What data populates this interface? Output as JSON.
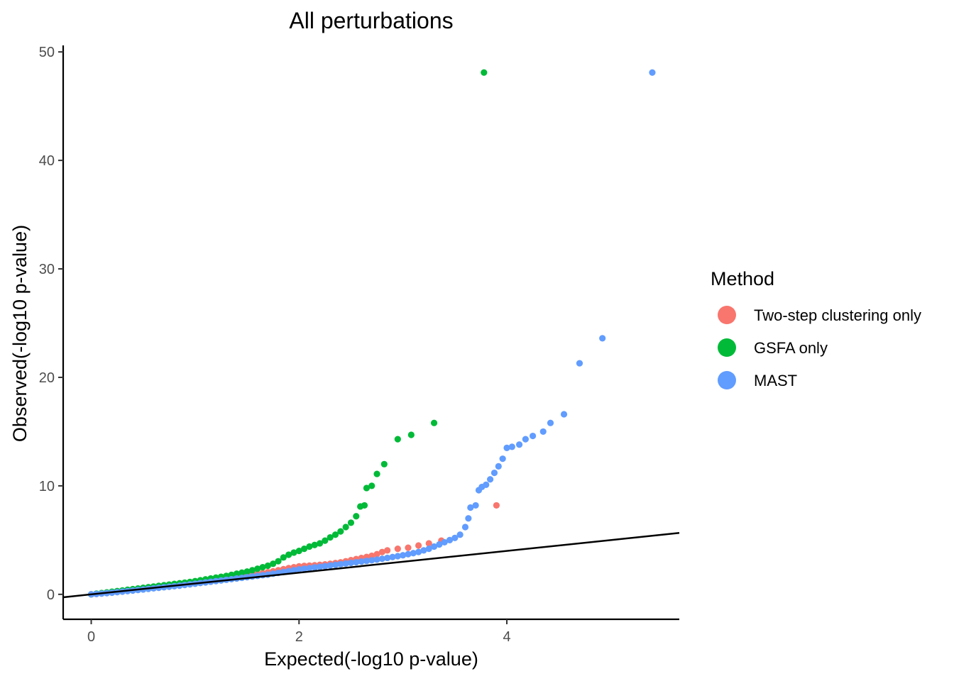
{
  "chart_data": {
    "type": "scatter",
    "title": "All perturbations",
    "xlabel": "Expected(-log10 p-value)",
    "ylabel": "Observed(-log10 p-value)",
    "xlim": [
      -0.27,
      5.66
    ],
    "ylim": [
      -2.3,
      50.6
    ],
    "x_ticks": [
      0,
      2,
      4
    ],
    "y_ticks": [
      0,
      10,
      20,
      30,
      40,
      50
    ],
    "grid": false,
    "reference_line": {
      "slope": 1,
      "intercept": 0,
      "color": "#000000"
    },
    "legend": {
      "title": "Method",
      "position": "right",
      "entries": [
        {
          "label": "Two-step clustering only",
          "color": "#F8766D"
        },
        {
          "label": "GSFA only",
          "color": "#00BA38"
        },
        {
          "label": "MAST",
          "color": "#619CFF"
        }
      ]
    },
    "series": [
      {
        "name": "Two-step clustering only",
        "color": "#F8766D",
        "points": [
          [
            0.0,
            0.0
          ],
          [
            0.05,
            0.04
          ],
          [
            0.1,
            0.09
          ],
          [
            0.15,
            0.14
          ],
          [
            0.2,
            0.19
          ],
          [
            0.25,
            0.24
          ],
          [
            0.3,
            0.29
          ],
          [
            0.35,
            0.34
          ],
          [
            0.4,
            0.39
          ],
          [
            0.45,
            0.44
          ],
          [
            0.5,
            0.5
          ],
          [
            0.55,
            0.56
          ],
          [
            0.6,
            0.62
          ],
          [
            0.65,
            0.68
          ],
          [
            0.7,
            0.74
          ],
          [
            0.75,
            0.8
          ],
          [
            0.8,
            0.86
          ],
          [
            0.85,
            0.92
          ],
          [
            0.9,
            0.98
          ],
          [
            0.95,
            1.04
          ],
          [
            1.0,
            1.1
          ],
          [
            1.05,
            1.16
          ],
          [
            1.1,
            1.22
          ],
          [
            1.15,
            1.28
          ],
          [
            1.2,
            1.34
          ],
          [
            1.25,
            1.4
          ],
          [
            1.3,
            1.46
          ],
          [
            1.35,
            1.52
          ],
          [
            1.4,
            1.58
          ],
          [
            1.45,
            1.64
          ],
          [
            1.5,
            1.72
          ],
          [
            1.55,
            1.8
          ],
          [
            1.6,
            1.88
          ],
          [
            1.65,
            1.96
          ],
          [
            1.7,
            2.04
          ],
          [
            1.75,
            2.12
          ],
          [
            1.8,
            2.22
          ],
          [
            1.85,
            2.32
          ],
          [
            1.9,
            2.42
          ],
          [
            1.95,
            2.5
          ],
          [
            2.0,
            2.58
          ],
          [
            2.05,
            2.62
          ],
          [
            2.1,
            2.65
          ],
          [
            2.15,
            2.68
          ],
          [
            2.2,
            2.72
          ],
          [
            2.25,
            2.76
          ],
          [
            2.3,
            2.82
          ],
          [
            2.35,
            2.88
          ],
          [
            2.4,
            2.95
          ],
          [
            2.45,
            3.05
          ],
          [
            2.5,
            3.15
          ],
          [
            2.55,
            3.25
          ],
          [
            2.6,
            3.35
          ],
          [
            2.65,
            3.45
          ],
          [
            2.7,
            3.55
          ],
          [
            2.75,
            3.7
          ],
          [
            2.8,
            3.9
          ],
          [
            2.85,
            4.05
          ],
          [
            2.95,
            4.2
          ],
          [
            3.05,
            4.3
          ],
          [
            3.15,
            4.5
          ],
          [
            3.25,
            4.7
          ],
          [
            3.37,
            4.95
          ],
          [
            3.9,
            8.2
          ]
        ]
      },
      {
        "name": "GSFA only",
        "color": "#00BA38",
        "points": [
          [
            0.0,
            0.0
          ],
          [
            0.05,
            0.06
          ],
          [
            0.1,
            0.12
          ],
          [
            0.15,
            0.18
          ],
          [
            0.2,
            0.24
          ],
          [
            0.25,
            0.3
          ],
          [
            0.3,
            0.36
          ],
          [
            0.35,
            0.42
          ],
          [
            0.4,
            0.48
          ],
          [
            0.45,
            0.54
          ],
          [
            0.5,
            0.6
          ],
          [
            0.55,
            0.66
          ],
          [
            0.6,
            0.72
          ],
          [
            0.65,
            0.78
          ],
          [
            0.7,
            0.84
          ],
          [
            0.75,
            0.9
          ],
          [
            0.8,
            0.96
          ],
          [
            0.85,
            1.02
          ],
          [
            0.9,
            1.08
          ],
          [
            0.95,
            1.14
          ],
          [
            1.0,
            1.22
          ],
          [
            1.05,
            1.3
          ],
          [
            1.1,
            1.38
          ],
          [
            1.15,
            1.46
          ],
          [
            1.2,
            1.54
          ],
          [
            1.25,
            1.62
          ],
          [
            1.3,
            1.7
          ],
          [
            1.35,
            1.8
          ],
          [
            1.4,
            1.9
          ],
          [
            1.45,
            2.0
          ],
          [
            1.5,
            2.1
          ],
          [
            1.55,
            2.22
          ],
          [
            1.6,
            2.36
          ],
          [
            1.65,
            2.5
          ],
          [
            1.7,
            2.64
          ],
          [
            1.75,
            2.82
          ],
          [
            1.8,
            3.05
          ],
          [
            1.85,
            3.4
          ],
          [
            1.9,
            3.65
          ],
          [
            1.95,
            3.85
          ],
          [
            2.0,
            4.0
          ],
          [
            2.05,
            4.2
          ],
          [
            2.1,
            4.4
          ],
          [
            2.15,
            4.55
          ],
          [
            2.2,
            4.7
          ],
          [
            2.25,
            4.95
          ],
          [
            2.3,
            5.25
          ],
          [
            2.35,
            5.5
          ],
          [
            2.4,
            5.8
          ],
          [
            2.45,
            6.2
          ],
          [
            2.5,
            6.6
          ],
          [
            2.55,
            7.2
          ],
          [
            2.59,
            8.1
          ],
          [
            2.63,
            8.2
          ],
          [
            2.65,
            9.8
          ],
          [
            2.7,
            10.0
          ],
          [
            2.75,
            11.1
          ],
          [
            2.82,
            12.0
          ],
          [
            2.95,
            14.3
          ],
          [
            3.08,
            14.7
          ],
          [
            3.3,
            15.8
          ],
          [
            3.78,
            48.1
          ]
        ]
      },
      {
        "name": "MAST",
        "color": "#619CFF",
        "points": [
          [
            0.0,
            0.0
          ],
          [
            0.05,
            0.03
          ],
          [
            0.1,
            0.07
          ],
          [
            0.15,
            0.11
          ],
          [
            0.2,
            0.15
          ],
          [
            0.25,
            0.2
          ],
          [
            0.3,
            0.25
          ],
          [
            0.35,
            0.3
          ],
          [
            0.4,
            0.35
          ],
          [
            0.45,
            0.4
          ],
          [
            0.5,
            0.45
          ],
          [
            0.55,
            0.5
          ],
          [
            0.6,
            0.55
          ],
          [
            0.65,
            0.6
          ],
          [
            0.7,
            0.65
          ],
          [
            0.75,
            0.7
          ],
          [
            0.8,
            0.75
          ],
          [
            0.85,
            0.8
          ],
          [
            0.9,
            0.86
          ],
          [
            0.95,
            0.92
          ],
          [
            1.0,
            0.98
          ],
          [
            1.05,
            1.04
          ],
          [
            1.1,
            1.1
          ],
          [
            1.15,
            1.16
          ],
          [
            1.2,
            1.22
          ],
          [
            1.25,
            1.28
          ],
          [
            1.3,
            1.34
          ],
          [
            1.35,
            1.4
          ],
          [
            1.4,
            1.46
          ],
          [
            1.45,
            1.52
          ],
          [
            1.5,
            1.58
          ],
          [
            1.55,
            1.64
          ],
          [
            1.6,
            1.7
          ],
          [
            1.65,
            1.76
          ],
          [
            1.7,
            1.82
          ],
          [
            1.75,
            1.9
          ],
          [
            1.8,
            1.98
          ],
          [
            1.85,
            2.06
          ],
          [
            1.9,
            2.14
          ],
          [
            1.95,
            2.22
          ],
          [
            2.0,
            2.3
          ],
          [
            2.05,
            2.36
          ],
          [
            2.1,
            2.42
          ],
          [
            2.15,
            2.48
          ],
          [
            2.2,
            2.54
          ],
          [
            2.25,
            2.6
          ],
          [
            2.3,
            2.66
          ],
          [
            2.35,
            2.72
          ],
          [
            2.4,
            2.78
          ],
          [
            2.45,
            2.84
          ],
          [
            2.5,
            2.9
          ],
          [
            2.55,
            2.96
          ],
          [
            2.6,
            3.02
          ],
          [
            2.65,
            3.08
          ],
          [
            2.7,
            3.14
          ],
          [
            2.75,
            3.2
          ],
          [
            2.8,
            3.28
          ],
          [
            2.85,
            3.36
          ],
          [
            2.9,
            3.44
          ],
          [
            2.95,
            3.52
          ],
          [
            3.0,
            3.6
          ],
          [
            3.05,
            3.7
          ],
          [
            3.1,
            3.8
          ],
          [
            3.15,
            3.9
          ],
          [
            3.2,
            4.05
          ],
          [
            3.25,
            4.2
          ],
          [
            3.3,
            4.4
          ],
          [
            3.35,
            4.6
          ],
          [
            3.4,
            4.8
          ],
          [
            3.45,
            5.0
          ],
          [
            3.5,
            5.2
          ],
          [
            3.55,
            5.5
          ],
          [
            3.6,
            6.2
          ],
          [
            3.63,
            7.0
          ],
          [
            3.65,
            8.0
          ],
          [
            3.7,
            8.2
          ],
          [
            3.73,
            9.6
          ],
          [
            3.76,
            9.9
          ],
          [
            3.8,
            10.1
          ],
          [
            3.84,
            10.6
          ],
          [
            3.88,
            11.2
          ],
          [
            3.92,
            11.8
          ],
          [
            3.96,
            12.5
          ],
          [
            4.0,
            13.5
          ],
          [
            4.05,
            13.6
          ],
          [
            4.12,
            13.8
          ],
          [
            4.18,
            14.3
          ],
          [
            4.25,
            14.6
          ],
          [
            4.35,
            15.0
          ],
          [
            4.42,
            15.8
          ],
          [
            4.55,
            16.6
          ],
          [
            4.7,
            21.3
          ],
          [
            4.92,
            23.6
          ],
          [
            5.4,
            48.1
          ]
        ]
      }
    ]
  }
}
